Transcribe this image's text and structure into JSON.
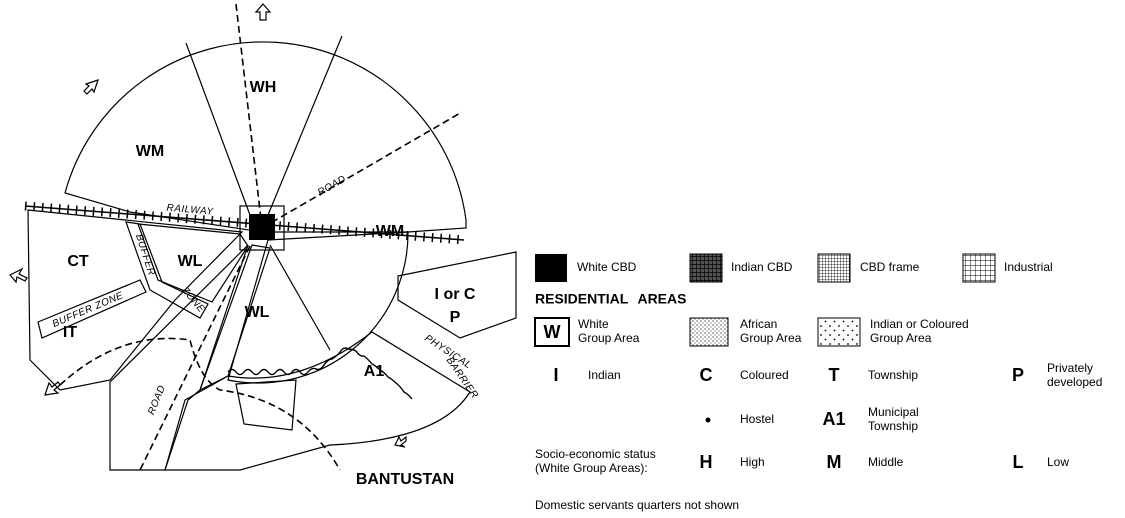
{
  "map": {
    "zones": [
      "WH",
      "WM",
      "WM",
      "WL",
      "WL",
      "CT",
      "IT",
      "I or C",
      "P",
      "A1",
      "BANTUSTAN"
    ],
    "annotations": [
      "RAILWAY",
      "ROAD",
      "ROAD",
      "BUFFER",
      "ZONE",
      "BUFFER ZONE",
      "PHYSICAL",
      "BARRIER"
    ]
  },
  "legend": {
    "cbd": [
      "White CBD",
      "Indian CBD",
      "CBD frame",
      "Industrial"
    ],
    "heading": "RESIDENTIAL AREAS",
    "group_areas": [
      {
        "symbol": "W",
        "lines": [
          "White",
          "Group Area"
        ]
      },
      {
        "lines": [
          "African",
          "Group Area"
        ]
      },
      {
        "lines": [
          "Indian or Coloured",
          "Group Area"
        ]
      }
    ],
    "symbols": [
      {
        "symbol": "I",
        "lines": [
          "Indian"
        ]
      },
      {
        "symbol": "C",
        "lines": [
          "Coloured"
        ]
      },
      {
        "symbol": "T",
        "lines": [
          "Township"
        ]
      },
      {
        "symbol": "P",
        "lines": [
          "Privately",
          "developed"
        ]
      },
      {
        "lines": [
          "Hostel"
        ]
      },
      {
        "symbol": "A1",
        "lines": [
          "Municipal",
          "Township"
        ]
      }
    ],
    "status": {
      "lines": [
        "Socio-economic status",
        "(White Group Areas):"
      ],
      "items": [
        {
          "symbol": "H",
          "label": "High"
        },
        {
          "symbol": "M",
          "label": "Middle"
        },
        {
          "symbol": "L",
          "label": "Low"
        }
      ]
    },
    "note": "Domestic servants quarters not shown"
  }
}
